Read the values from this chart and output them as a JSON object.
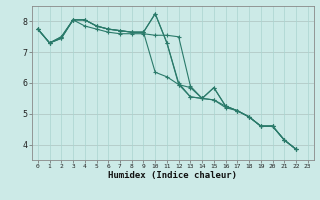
{
  "title": "",
  "xlabel": "Humidex (Indice chaleur)",
  "bg_color": "#cceae7",
  "grid_color": "#aad4d0",
  "line_color": "#2a7a6a",
  "xlim": [
    -0.5,
    23.5
  ],
  "ylim": [
    3.5,
    8.5
  ],
  "xticks": [
    0,
    1,
    2,
    3,
    4,
    5,
    6,
    7,
    8,
    9,
    10,
    11,
    12,
    13,
    14,
    15,
    16,
    17,
    18,
    19,
    20,
    21,
    22,
    23
  ],
  "yticks": [
    4,
    5,
    6,
    7,
    8
  ],
  "series": [
    [
      7.75,
      7.3,
      7.45,
      8.05,
      8.05,
      7.85,
      7.75,
      7.7,
      7.65,
      7.65,
      8.25,
      7.3,
      6.0,
      5.55,
      5.5,
      5.85,
      5.25,
      5.1,
      4.9,
      4.6,
      4.6,
      4.15,
      3.85
    ],
    [
      7.75,
      7.3,
      7.45,
      8.05,
      7.85,
      7.75,
      7.65,
      7.6,
      7.6,
      7.6,
      7.55,
      7.55,
      7.5,
      5.9,
      5.5,
      5.45,
      5.2,
      5.1,
      4.9,
      4.6,
      4.6,
      4.15,
      3.85
    ],
    [
      7.75,
      7.3,
      7.5,
      8.05,
      8.05,
      7.85,
      7.75,
      7.7,
      7.65,
      7.65,
      6.35,
      6.2,
      5.95,
      5.85,
      5.5,
      5.45,
      5.25,
      5.1,
      4.9,
      4.6,
      4.6,
      4.15,
      3.85
    ],
    [
      7.75,
      7.3,
      7.5,
      8.05,
      8.05,
      7.85,
      7.75,
      7.7,
      7.65,
      7.65,
      8.25,
      7.3,
      5.95,
      5.55,
      5.5,
      5.85,
      5.25,
      5.1,
      4.9,
      4.6,
      4.6,
      4.15,
      3.85
    ]
  ]
}
